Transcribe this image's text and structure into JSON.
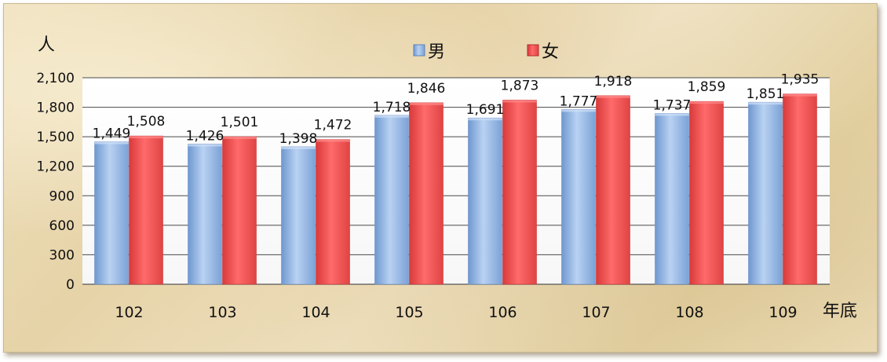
{
  "chart_data": {
    "type": "bar",
    "categories": [
      "102",
      "103",
      "104",
      "105",
      "106",
      "107",
      "108",
      "109"
    ],
    "series": [
      {
        "name": "男",
        "color": "#8fb4e3",
        "values": [
          1449,
          1426,
          1398,
          1718,
          1691,
          1777,
          1737,
          1851
        ]
      },
      {
        "name": "女",
        "color": "#f05252",
        "values": [
          1508,
          1501,
          1472,
          1846,
          1873,
          1918,
          1859,
          1935
        ]
      }
    ],
    "data_labels": {
      "男": [
        "1,449",
        "1,426",
        "1,398",
        "1,718",
        "1,691",
        "1,777",
        "1,737",
        "1,851"
      ],
      "女": [
        "1,508",
        "1,501",
        "1,472",
        "1,846",
        "1,873",
        "1,918",
        "1,859",
        "1,935"
      ]
    },
    "yticks": [
      0,
      300,
      600,
      900,
      1200,
      1500,
      1800,
      2100
    ],
    "ytick_labels": [
      "0",
      "300",
      "600",
      "900",
      "1,200",
      "1,500",
      "1,800",
      "2,100"
    ],
    "ylim": [
      0,
      2100
    ],
    "ylabel": "人",
    "xlabel": "年底",
    "legend_position": "top-center",
    "grid": true,
    "background": "parchment texture"
  }
}
